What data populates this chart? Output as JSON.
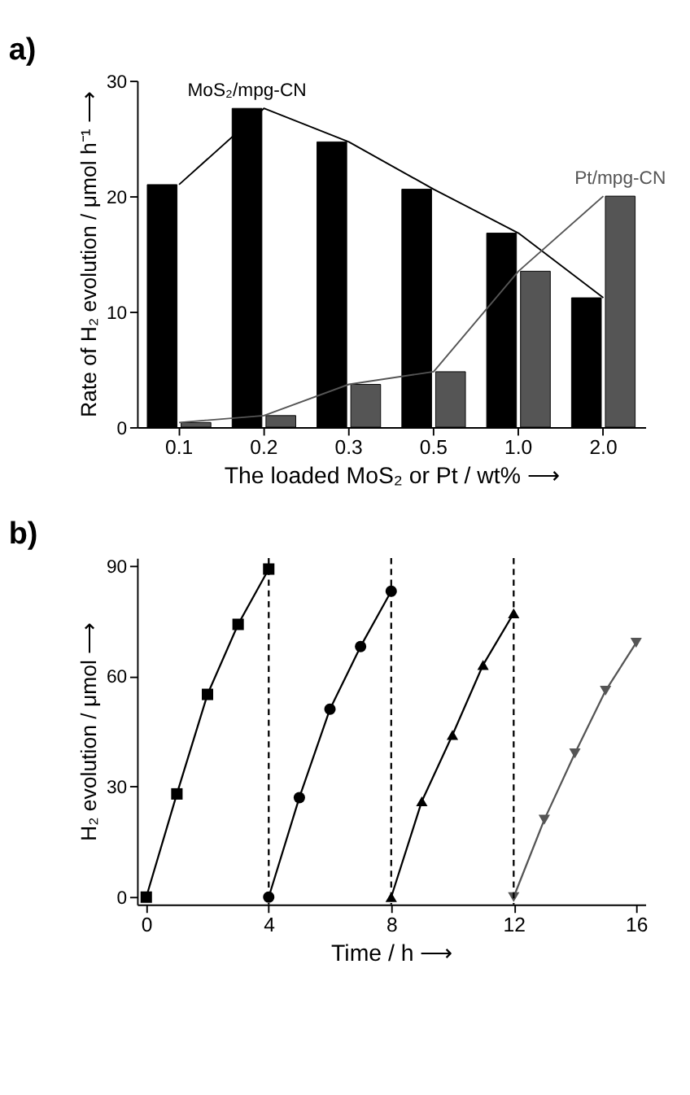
{
  "chart_data": [
    {
      "type": "bar",
      "title": "a)",
      "categories": [
        "0.1",
        "0.2",
        "0.3",
        "0.5",
        "1.0",
        "2.0"
      ],
      "xlabel": "The loaded MoS₂ or Pt / wt% ⟶",
      "ylabel": "Rate of H₂ evolution / μmol h⁻¹ ⟶",
      "ylim": [
        0,
        30
      ],
      "yticks": [
        0,
        10,
        20,
        30
      ],
      "grid": false,
      "legend": false,
      "series": [
        {
          "name": "MoS₂/mpg-CN",
          "color": "#000000",
          "values": [
            21.0,
            27.6,
            24.7,
            20.6,
            16.8,
            11.2
          ]
        },
        {
          "name": "Pt/mpg-CN",
          "color": "#555555",
          "values": [
            0.4,
            1.0,
            3.7,
            4.8,
            13.5,
            20.0
          ]
        },
        {
          "type": "line",
          "color": "#000000",
          "values": [
            21.0,
            27.6,
            24.7,
            20.6,
            16.8,
            11.2
          ]
        },
        {
          "type": "line",
          "color": "#555555",
          "values": [
            0.4,
            1.0,
            3.7,
            4.8,
            13.5,
            20.0
          ]
        }
      ]
    },
    {
      "type": "line",
      "title": "b)",
      "xlabel": "Time / h ⟶",
      "ylabel": "H₂ evolution / μmol ⟶",
      "xlim": [
        -0.3,
        16.3
      ],
      "xticks": [
        0,
        4,
        8,
        12,
        16
      ],
      "ylim": [
        -2,
        92
      ],
      "yticks": [
        0,
        30,
        60,
        90
      ],
      "grid": false,
      "legend": false,
      "series": [
        {
          "color": "#000000",
          "marker": "square",
          "x": [
            0,
            1,
            2,
            3,
            4
          ],
          "values": [
            0,
            28,
            55,
            74,
            89
          ]
        },
        {
          "color": "#000000",
          "marker": "circle",
          "x": [
            4,
            5,
            6,
            7,
            8
          ],
          "values": [
            0,
            27,
            51,
            68,
            83
          ]
        },
        {
          "color": "#000000",
          "marker": "triangle",
          "x": [
            8,
            9,
            10,
            11,
            12
          ],
          "values": [
            0,
            26,
            44,
            63,
            77
          ]
        },
        {
          "color": "#555555",
          "marker": "triangle-down",
          "x": [
            12,
            13,
            14,
            15,
            16
          ],
          "values": [
            0,
            21,
            39,
            56,
            69
          ]
        }
      ],
      "ref_lines": [
        {
          "axis": "x",
          "value": 4,
          "line_style": "dashed",
          "color": "#000000"
        },
        {
          "axis": "x",
          "value": 8,
          "line_style": "dashed",
          "color": "#000000"
        },
        {
          "axis": "x",
          "value": 12,
          "line_style": "dashed",
          "color": "#000000"
        }
      ]
    }
  ]
}
